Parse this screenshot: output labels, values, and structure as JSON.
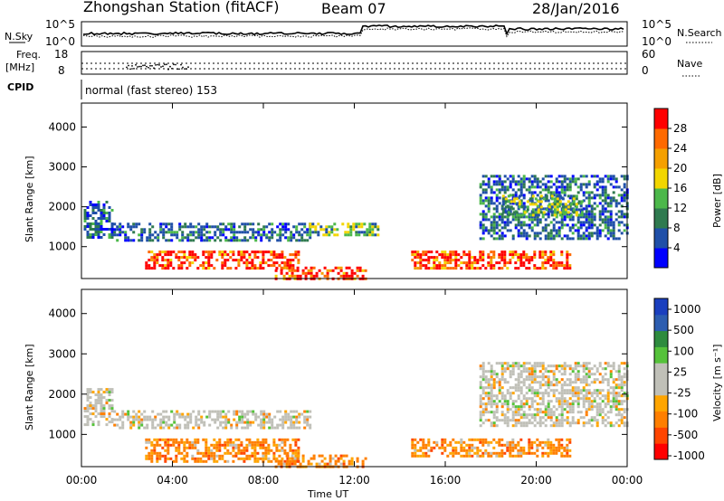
{
  "header": {
    "station": "Zhongshan Station (fitACF)",
    "beam": "Beam 07",
    "date": "28/Jan/2016"
  },
  "strip_panels": {
    "sky_label": "N.Sky",
    "search_label": "N.Search",
    "sky_ticks": [
      "10^5",
      "10^0"
    ],
    "search_ticks": [
      "10^5",
      "10^0"
    ],
    "freq_label_1": "Freq.",
    "freq_label_2": "[MHz]",
    "freq_ticks": [
      "18",
      "8"
    ],
    "nave_label": "Nave",
    "nave_ticks": [
      "60",
      "0"
    ],
    "cpid_label": "CPID",
    "cpid_text": "normal (fast stereo) 153"
  },
  "colors": {
    "power_scale": [
      "#0000ff",
      "#1f4fa8",
      "#2f7a4f",
      "#4cb84a",
      "#f2d600",
      "#f5a000",
      "#ff6a00",
      "#ff0000"
    ],
    "velocity_scale": [
      "#ff0000",
      "#ff4500",
      "#ff7f00",
      "#ffa500",
      "#c0c0b8",
      "#c0c0b8",
      "#55c23a",
      "#2e8b3e",
      "#2c5db0",
      "#1a3fbf"
    ]
  },
  "chart_data": [
    {
      "type": "heatmap",
      "name": "power",
      "ylabel": "Slant Range [km]",
      "yticks": [
        1000,
        2000,
        3000,
        4000
      ],
      "ylim": [
        200,
        4600
      ],
      "xlim": [
        0,
        24
      ],
      "colorbar": {
        "label": "Power [dB]",
        "levels": [
          4,
          8,
          12,
          16,
          20,
          24,
          28
        ],
        "range": [
          0,
          32
        ]
      },
      "echo_regions": [
        {
          "t0": 0.1,
          "t1": 1.4,
          "r0": 1250,
          "r1": 2150,
          "level": "low"
        },
        {
          "t0": 1.4,
          "t1": 10.0,
          "r0": 1150,
          "r1": 1600,
          "level": "low"
        },
        {
          "t0": 2.8,
          "t1": 9.5,
          "r0": 450,
          "r1": 900,
          "level": "high"
        },
        {
          "t0": 8.5,
          "t1": 12.5,
          "r0": 200,
          "r1": 500,
          "level": "high"
        },
        {
          "t0": 10.0,
          "t1": 13.0,
          "r0": 1300,
          "r1": 1600,
          "level": "mid"
        },
        {
          "t0": 14.5,
          "t1": 21.5,
          "r0": 450,
          "r1": 900,
          "level": "high"
        },
        {
          "t0": 17.5,
          "t1": 24.0,
          "r0": 1200,
          "r1": 2800,
          "level": "low"
        },
        {
          "t0": 18.5,
          "t1": 22.0,
          "r0": 1800,
          "r1": 2300,
          "level": "mid"
        }
      ]
    },
    {
      "type": "heatmap",
      "name": "velocity",
      "ylabel": "Slant Range [km]",
      "yticks": [
        1000,
        2000,
        3000,
        4000
      ],
      "ylim": [
        200,
        4600
      ],
      "xlim": [
        0,
        24
      ],
      "xlabel": "Time UT",
      "xticks": [
        "00:00",
        "04:00",
        "08:00",
        "12:00",
        "16:00",
        "20:00",
        "00:00"
      ],
      "colorbar": {
        "label": "Velocity [m s⁻¹]",
        "levels": [
          "1000",
          "500",
          "100",
          "25",
          "-25",
          "-100",
          "-500",
          "-1000"
        ]
      },
      "echo_regions": [
        {
          "t0": 0.1,
          "t1": 1.4,
          "r0": 1250,
          "r1": 2150,
          "level": "gray"
        },
        {
          "t0": 1.4,
          "t1": 10.0,
          "r0": 1150,
          "r1": 1600,
          "level": "gray"
        },
        {
          "t0": 2.8,
          "t1": 9.5,
          "r0": 300,
          "r1": 900,
          "level": "orange"
        },
        {
          "t0": 8.5,
          "t1": 12.5,
          "r0": 200,
          "r1": 500,
          "level": "orange"
        },
        {
          "t0": 14.5,
          "t1": 21.5,
          "r0": 450,
          "r1": 900,
          "level": "orange"
        },
        {
          "t0": 17.5,
          "t1": 24.0,
          "r0": 1200,
          "r1": 2800,
          "level": "gray"
        }
      ]
    }
  ]
}
